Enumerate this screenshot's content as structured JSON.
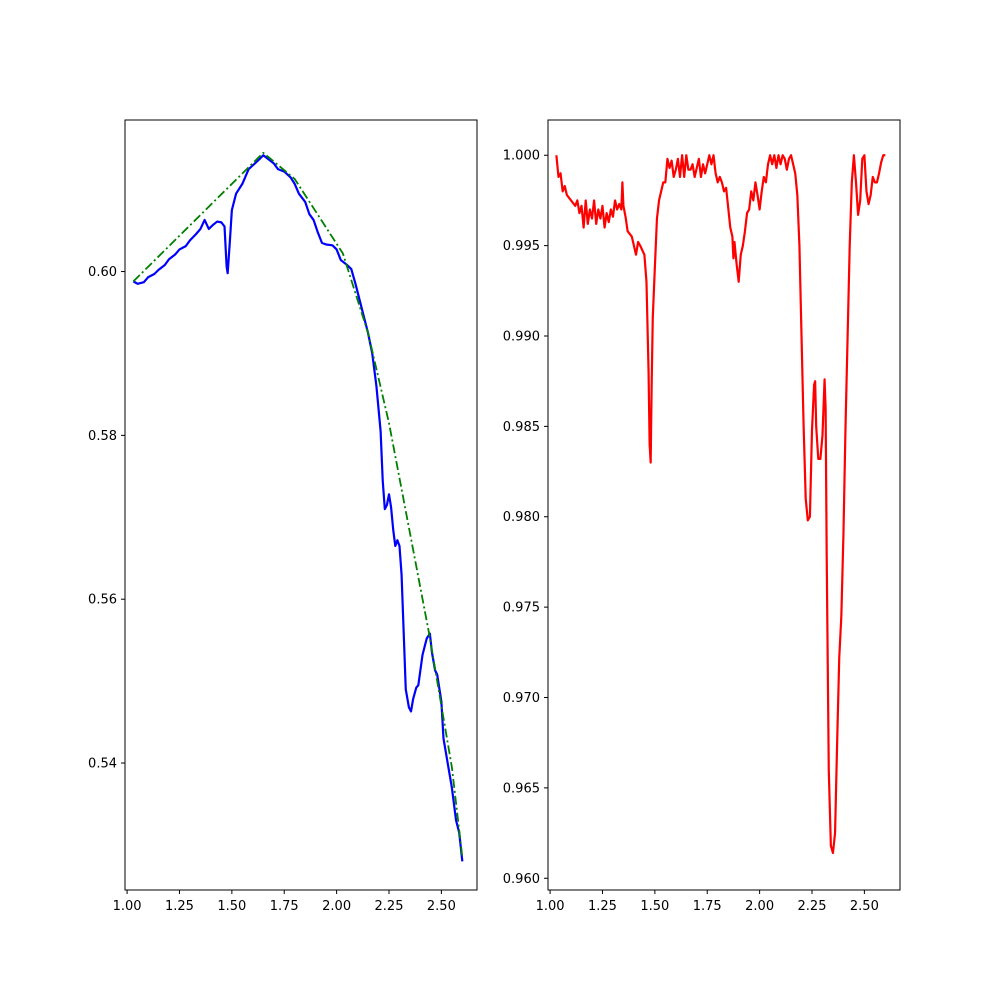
{
  "chart_data": [
    {
      "type": "line",
      "title": "",
      "xlabel": "",
      "ylabel": "",
      "xlim": [
        0.99,
        2.67
      ],
      "ylim": [
        0.5245,
        0.6185
      ],
      "xticks": [
        "1.00",
        "1.25",
        "1.50",
        "1.75",
        "2.00",
        "2.25",
        "2.50"
      ],
      "xtick_values": [
        1.0,
        1.25,
        1.5,
        1.75,
        2.0,
        2.25,
        2.5
      ],
      "yticks": [
        "0.54",
        "0.56",
        "0.58",
        "0.60"
      ],
      "ytick_values": [
        0.54,
        0.56,
        0.58,
        0.6
      ],
      "grid": false,
      "series": [
        {
          "color": "#0000ff",
          "style": "solid",
          "points": [
            [
              1.03,
              0.5988
            ],
            [
              1.05,
              0.5985
            ],
            [
              1.08,
              0.5987
            ],
            [
              1.1,
              0.5993
            ],
            [
              1.13,
              0.5997
            ],
            [
              1.15,
              0.6002
            ],
            [
              1.18,
              0.6008
            ],
            [
              1.2,
              0.6015
            ],
            [
              1.23,
              0.6021
            ],
            [
              1.25,
              0.6027
            ],
            [
              1.28,
              0.6031
            ],
            [
              1.3,
              0.6038
            ],
            [
              1.33,
              0.6046
            ],
            [
              1.35,
              0.6052
            ],
            [
              1.37,
              0.6063
            ],
            [
              1.39,
              0.6052
            ],
            [
              1.41,
              0.6057
            ],
            [
              1.43,
              0.6061
            ],
            [
              1.45,
              0.606
            ],
            [
              1.465,
              0.6055
            ],
            [
              1.475,
              0.6006
            ],
            [
              1.48,
              0.5998
            ],
            [
              1.49,
              0.6035
            ],
            [
              1.5,
              0.6075
            ],
            [
              1.52,
              0.6095
            ],
            [
              1.55,
              0.6107
            ],
            [
              1.58,
              0.6125
            ],
            [
              1.61,
              0.6132
            ],
            [
              1.635,
              0.6138
            ],
            [
              1.65,
              0.6142
            ],
            [
              1.67,
              0.6138
            ],
            [
              1.7,
              0.6132
            ],
            [
              1.72,
              0.6125
            ],
            [
              1.75,
              0.6122
            ],
            [
              1.78,
              0.6115
            ],
            [
              1.8,
              0.6107
            ],
            [
              1.82,
              0.6095
            ],
            [
              1.85,
              0.6085
            ],
            [
              1.87,
              0.607
            ],
            [
              1.89,
              0.6063
            ],
            [
              1.91,
              0.6048
            ],
            [
              1.93,
              0.6035
            ],
            [
              1.95,
              0.6033
            ],
            [
              1.98,
              0.6032
            ],
            [
              2.0,
              0.6027
            ],
            [
              2.02,
              0.6014
            ],
            [
              2.05,
              0.6008
            ],
            [
              2.07,
              0.6003
            ],
            [
              2.09,
              0.5985
            ],
            [
              2.11,
              0.5965
            ],
            [
              2.13,
              0.5945
            ],
            [
              2.15,
              0.5925
            ],
            [
              2.17,
              0.59
            ],
            [
              2.19,
              0.586
            ],
            [
              2.21,
              0.5805
            ],
            [
              2.22,
              0.5745
            ],
            [
              2.23,
              0.571
            ],
            [
              2.24,
              0.5715
            ],
            [
              2.25,
              0.5728
            ],
            [
              2.26,
              0.5712
            ],
            [
              2.27,
              0.5685
            ],
            [
              2.28,
              0.5665
            ],
            [
              2.29,
              0.5672
            ],
            [
              2.3,
              0.5665
            ],
            [
              2.31,
              0.563
            ],
            [
              2.32,
              0.556
            ],
            [
              2.33,
              0.549
            ],
            [
              2.345,
              0.5468
            ],
            [
              2.355,
              0.5463
            ],
            [
              2.365,
              0.5478
            ],
            [
              2.38,
              0.5492
            ],
            [
              2.39,
              0.5495
            ],
            [
              2.41,
              0.5532
            ],
            [
              2.43,
              0.5552
            ],
            [
              2.445,
              0.5558
            ],
            [
              2.455,
              0.5535
            ],
            [
              2.47,
              0.5513
            ],
            [
              2.48,
              0.5508
            ],
            [
              2.5,
              0.5475
            ],
            [
              2.51,
              0.543
            ],
            [
              2.53,
              0.54
            ],
            [
              2.55,
              0.537
            ],
            [
              2.57,
              0.533
            ],
            [
              2.585,
              0.5315
            ],
            [
              2.6,
              0.528
            ]
          ]
        },
        {
          "color": "#008000",
          "style": "dashdot",
          "points": [
            [
              1.03,
              0.5988
            ],
            [
              1.65,
              0.6145
            ],
            [
              1.8,
              0.6113
            ],
            [
              2.03,
              0.6022
            ],
            [
              2.15,
              0.5925
            ],
            [
              2.25,
              0.5815
            ],
            [
              2.44,
              0.556
            ],
            [
              2.55,
              0.5395
            ],
            [
              2.6,
              0.5285
            ]
          ]
        }
      ]
    },
    {
      "type": "line",
      "title": "",
      "xlabel": "",
      "ylabel": "",
      "xlim": [
        0.99,
        2.67
      ],
      "ylim": [
        0.95935,
        1.00195
      ],
      "xticks": [
        "1.00",
        "1.25",
        "1.50",
        "1.75",
        "2.00",
        "2.25",
        "2.50"
      ],
      "xtick_values": [
        1.0,
        1.25,
        1.5,
        1.75,
        2.0,
        2.25,
        2.5
      ],
      "yticks": [
        "0.960",
        "0.965",
        "0.970",
        "0.975",
        "0.980",
        "0.985",
        "0.990",
        "0.995",
        "1.000"
      ],
      "ytick_values": [
        0.96,
        0.965,
        0.97,
        0.975,
        0.98,
        0.985,
        0.99,
        0.995,
        1.0
      ],
      "grid": false,
      "series": [
        {
          "color": "#ff0000",
          "style": "solid",
          "points": [
            [
              1.03,
              1.0
            ],
            [
              1.04,
              0.9988
            ],
            [
              1.05,
              0.999
            ],
            [
              1.06,
              0.998
            ],
            [
              1.07,
              0.9983
            ],
            [
              1.08,
              0.9978
            ],
            [
              1.1,
              0.9975
            ],
            [
              1.12,
              0.9972
            ],
            [
              1.13,
              0.9975
            ],
            [
              1.14,
              0.9968
            ],
            [
              1.15,
              0.9972
            ],
            [
              1.16,
              0.996
            ],
            [
              1.17,
              0.9975
            ],
            [
              1.18,
              0.9962
            ],
            [
              1.19,
              0.997
            ],
            [
              1.2,
              0.9965
            ],
            [
              1.21,
              0.9975
            ],
            [
              1.22,
              0.9962
            ],
            [
              1.23,
              0.997
            ],
            [
              1.24,
              0.9965
            ],
            [
              1.25,
              0.9972
            ],
            [
              1.26,
              0.996
            ],
            [
              1.27,
              0.9968
            ],
            [
              1.28,
              0.9963
            ],
            [
              1.29,
              0.997
            ],
            [
              1.3,
              0.9966
            ],
            [
              1.31,
              0.9975
            ],
            [
              1.32,
              0.997
            ],
            [
              1.33,
              0.9973
            ],
            [
              1.34,
              0.997
            ],
            [
              1.345,
              0.9985
            ],
            [
              1.35,
              0.9972
            ],
            [
              1.36,
              0.9966
            ],
            [
              1.37,
              0.9958
            ],
            [
              1.39,
              0.9955
            ],
            [
              1.41,
              0.9945
            ],
            [
              1.42,
              0.9952
            ],
            [
              1.43,
              0.995
            ],
            [
              1.45,
              0.9945
            ],
            [
              1.46,
              0.993
            ],
            [
              1.47,
              0.988
            ],
            [
              1.475,
              0.984
            ],
            [
              1.48,
              0.983
            ],
            [
              1.485,
              0.9875
            ],
            [
              1.49,
              0.991
            ],
            [
              1.5,
              0.9938
            ],
            [
              1.51,
              0.9965
            ],
            [
              1.52,
              0.9975
            ],
            [
              1.54,
              0.9985
            ],
            [
              1.55,
              0.9985
            ],
            [
              1.56,
              0.9998
            ],
            [
              1.57,
              0.9993
            ],
            [
              1.58,
              0.9997
            ],
            [
              1.59,
              0.9988
            ],
            [
              1.6,
              0.9992
            ],
            [
              1.61,
              0.9998
            ],
            [
              1.62,
              0.9988
            ],
            [
              1.63,
              1.0
            ],
            [
              1.64,
              0.9988
            ],
            [
              1.65,
              1.0
            ],
            [
              1.66,
              0.9992
            ],
            [
              1.67,
              0.9992
            ],
            [
              1.68,
              0.9995
            ],
            [
              1.69,
              0.9988
            ],
            [
              1.7,
              0.9993
            ],
            [
              1.71,
              0.9998
            ],
            [
              1.72,
              0.9988
            ],
            [
              1.73,
              0.9995
            ],
            [
              1.74,
              0.999
            ],
            [
              1.75,
              0.9995
            ],
            [
              1.76,
              1.0
            ],
            [
              1.77,
              0.9995
            ],
            [
              1.78,
              1.0
            ],
            [
              1.79,
              0.999
            ],
            [
              1.8,
              0.9985
            ],
            [
              1.81,
              0.9988
            ],
            [
              1.82,
              0.9985
            ],
            [
              1.83,
              0.998
            ],
            [
              1.84,
              0.9982
            ],
            [
              1.86,
              0.996
            ],
            [
              1.87,
              0.9955
            ],
            [
              1.875,
              0.9943
            ],
            [
              1.88,
              0.9952
            ],
            [
              1.89,
              0.994
            ],
            [
              1.9,
              0.993
            ],
            [
              1.91,
              0.9945
            ],
            [
              1.92,
              0.995
            ],
            [
              1.93,
              0.9958
            ],
            [
              1.94,
              0.9968
            ],
            [
              1.95,
              0.997
            ],
            [
              1.96,
              0.998
            ],
            [
              1.97,
              0.9975
            ],
            [
              1.98,
              0.9985
            ],
            [
              1.99,
              0.9978
            ],
            [
              2.0,
              0.997
            ],
            [
              2.01,
              0.998
            ],
            [
              2.02,
              0.9988
            ],
            [
              2.03,
              0.9985
            ],
            [
              2.04,
              0.9995
            ],
            [
              2.05,
              1.0
            ],
            [
              2.06,
              0.9995
            ],
            [
              2.07,
              1.0
            ],
            [
              2.08,
              0.9993
            ],
            [
              2.09,
              1.0
            ],
            [
              2.1,
              0.9995
            ],
            [
              2.11,
              1.0
            ],
            [
              2.12,
              0.9998
            ],
            [
              2.13,
              0.9992
            ],
            [
              2.14,
              0.9998
            ],
            [
              2.15,
              1.0
            ],
            [
              2.16,
              0.9995
            ],
            [
              2.17,
              0.999
            ],
            [
              2.18,
              0.9978
            ],
            [
              2.19,
              0.995
            ],
            [
              2.2,
              0.99
            ],
            [
              2.21,
              0.985
            ],
            [
              2.22,
              0.981
            ],
            [
              2.23,
              0.9798
            ],
            [
              2.24,
              0.98
            ],
            [
              2.25,
              0.9848
            ],
            [
              2.26,
              0.9873
            ],
            [
              2.265,
              0.9875
            ],
            [
              2.27,
              0.985
            ],
            [
              2.28,
              0.9832
            ],
            [
              2.29,
              0.9832
            ],
            [
              2.3,
              0.9845
            ],
            [
              2.31,
              0.9876
            ],
            [
              2.315,
              0.986
            ],
            [
              2.32,
              0.978
            ],
            [
              2.33,
              0.966
            ],
            [
              2.34,
              0.9618
            ],
            [
              2.35,
              0.9614
            ],
            [
              2.36,
              0.9625
            ],
            [
              2.37,
              0.9675
            ],
            [
              2.38,
              0.9722
            ],
            [
              2.39,
              0.9745
            ],
            [
              2.4,
              0.979
            ],
            [
              2.41,
              0.985
            ],
            [
              2.42,
              0.99
            ],
            [
              2.43,
              0.995
            ],
            [
              2.44,
              0.9985
            ],
            [
              2.45,
              1.0
            ],
            [
              2.46,
              0.9985
            ],
            [
              2.47,
              0.9967
            ],
            [
              2.48,
              0.9975
            ],
            [
              2.49,
              0.9998
            ],
            [
              2.5,
              1.0
            ],
            [
              2.51,
              0.998
            ],
            [
              2.52,
              0.9973
            ],
            [
              2.53,
              0.9978
            ],
            [
              2.54,
              0.9988
            ],
            [
              2.55,
              0.9985
            ],
            [
              2.56,
              0.9985
            ],
            [
              2.57,
              0.999
            ],
            [
              2.58,
              0.9996
            ],
            [
              2.59,
              1.0
            ],
            [
              2.6,
              1.0
            ]
          ]
        }
      ]
    }
  ]
}
